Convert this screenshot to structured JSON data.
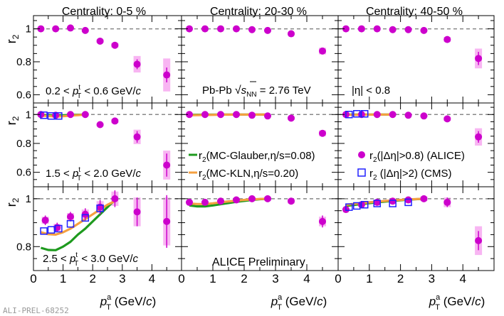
{
  "chart_data": {
    "type": "scatter",
    "title": "",
    "prelim_label": "ALI-PREL-68252",
    "ylabel": "r",
    "ylabel_sub": "2",
    "xlabel": "p",
    "xlabel_sup": "a",
    "xlabel_sub": "T",
    "xlabel_unit_pre": " (GeV/",
    "xlabel_unit_c": "c",
    "xlabel_unit_post": ")",
    "xlim": [
      0,
      5
    ],
    "x_ticks": [
      "0",
      "1",
      "2",
      "3",
      "4"
    ],
    "columns": [
      "Centrality: 0-5 %",
      "Centrality: 20-30 %",
      "Centrality: 40-50 %"
    ],
    "rows": [
      {
        "ylim": [
          0.55,
          1.08
        ],
        "ticks": [
          "0.6",
          "0.8",
          "1"
        ],
        "pt_label": {
          "pre": "0.2 < ",
          "p": "p",
          "sup": "t",
          "sub": "T",
          "post": " < 0.6 GeV/",
          "c": "c"
        },
        "panels": [
          {
            "x": [
              0.25,
              0.75,
              1.25,
              1.75,
              2.25,
              2.75,
              3.5,
              4.5
            ],
            "alice": [
              1.0,
              1.0,
              1.005,
              0.99,
              0.925,
              0.9,
              0.785,
              0.72
            ],
            "alice_err": [
              0.008,
              0.008,
              0.008,
              0.01,
              0.015,
              0.02,
              0.03,
              0.045
            ],
            "alice_sys": [
              0.005,
              0.005,
              0.006,
              0.008,
              0.01,
              0.015,
              0.05,
              0.1
            ]
          },
          {
            "x": [
              0.25,
              0.75,
              1.25,
              1.75,
              2.25,
              2.75,
              3.5,
              4.5
            ],
            "alice": [
              1.0,
              1.0,
              1.0,
              1.0,
              0.995,
              0.99,
              0.97,
              0.865
            ],
            "alice_err": [
              0.004,
              0.004,
              0.004,
              0.005,
              0.006,
              0.008,
              0.012,
              0.02
            ],
            "alice_sys": [
              0.003,
              0.003,
              0.003,
              0.004,
              0.005,
              0.006,
              0.01,
              0.02
            ]
          },
          {
            "x": [
              0.25,
              0.75,
              1.25,
              1.75,
              2.25,
              2.75,
              3.5,
              4.5
            ],
            "alice": [
              1.0,
              1.0,
              1.0,
              0.995,
              0.995,
              0.99,
              0.935,
              0.82
            ],
            "alice_err": [
              0.004,
              0.004,
              0.004,
              0.005,
              0.006,
              0.008,
              0.015,
              0.04
            ],
            "alice_sys": [
              0.003,
              0.003,
              0.003,
              0.004,
              0.005,
              0.006,
              0.015,
              0.06
            ]
          }
        ]
      },
      {
        "ylim": [
          0.5,
          1.08
        ],
        "ticks": [
          "0.6",
          "0.8",
          "1"
        ],
        "pt_label": {
          "pre": "1.5 < ",
          "p": "p",
          "sup": "t",
          "sub": "T",
          "post": " < 2.0 GeV/",
          "c": "c"
        },
        "panels": [
          {
            "x": [
              0.25,
              0.75,
              1.25,
              1.75,
              2.25,
              2.75,
              3.5,
              4.5
            ],
            "alice": [
              1.0,
              0.995,
              1.0,
              1.0,
              0.93,
              0.955,
              0.845,
              0.65
            ],
            "alice_err": [
              0.008,
              0.008,
              0.008,
              0.01,
              0.015,
              0.02,
              0.04,
              0.08
            ],
            "alice_sys": [
              0.005,
              0.005,
              0.006,
              0.008,
              0.01,
              0.015,
              0.05,
              0.1
            ],
            "cms_x": [
              0.35,
              0.6,
              0.85
            ],
            "cms": [
              0.995,
              0.99,
              0.99
            ],
            "glauber": {
              "x": [
                0.3,
                0.8,
                1.3,
                1.8
              ],
              "y": [
                0.997,
                0.993,
                0.997,
                1.0
              ]
            },
            "kln": {
              "x": [
                0.3,
                0.8,
                1.3,
                1.8
              ],
              "y": [
                0.992,
                0.985,
                0.993,
                1.0
              ]
            }
          },
          {
            "x": [
              0.25,
              0.75,
              1.25,
              1.75,
              2.25,
              2.75,
              3.5,
              4.5
            ],
            "alice": [
              1.0,
              1.0,
              1.0,
              1.0,
              0.995,
              0.99,
              0.975,
              0.87
            ],
            "alice_err": [
              0.004,
              0.004,
              0.004,
              0.005,
              0.006,
              0.008,
              0.012,
              0.02
            ],
            "alice_sys": [
              0.003,
              0.003,
              0.003,
              0.004,
              0.005,
              0.006,
              0.01,
              0.02
            ],
            "glauber": {
              "x": [
                0.3,
                0.8,
                1.3,
                1.8,
                2.3,
                2.8
              ],
              "y": [
                0.998,
                0.999,
                1.0,
                1.0,
                1.0,
                1.0
              ]
            },
            "kln": {
              "x": [
                0.3,
                0.8,
                1.3,
                1.8,
                2.3,
                2.8
              ],
              "y": [
                0.995,
                0.997,
                0.999,
                1.0,
                1.0,
                1.0
              ]
            }
          },
          {
            "x": [
              0.25,
              0.75,
              1.25,
              1.75,
              2.25,
              2.75,
              3.5,
              4.5
            ],
            "alice": [
              1.0,
              1.0,
              1.0,
              1.0,
              0.995,
              0.99,
              0.97,
              0.845
            ],
            "alice_err": [
              0.004,
              0.004,
              0.004,
              0.005,
              0.006,
              0.008,
              0.015,
              0.04
            ],
            "alice_sys": [
              0.003,
              0.003,
              0.003,
              0.004,
              0.005,
              0.006,
              0.015,
              0.06
            ],
            "cms_x": [
              0.35,
              0.6,
              0.85
            ],
            "cms": [
              1.0,
              1.005,
              1.005
            ],
            "glauber": {
              "x": [
                0.3,
                0.8,
                1.3,
                1.8
              ],
              "y": [
                1.0,
                1.0,
                1.0,
                1.0
              ]
            },
            "kln": {
              "x": [
                0.3,
                0.8,
                1.3,
                1.8
              ],
              "y": [
                0.998,
                0.999,
                1.0,
                1.0
              ]
            }
          }
        ]
      },
      {
        "ylim": [
          0.7,
          1.05
        ],
        "ticks": [
          "0.8",
          "1"
        ],
        "pt_label": {
          "pre": "2.5 < ",
          "p": "p",
          "sup": "t",
          "sub": "T",
          "post": " < 3.0 GeV/",
          "c": "c"
        },
        "panels": [
          {
            "x": [
              0.4,
              0.8,
              1.25,
              1.75,
              2.25,
              2.75,
              3.5,
              4.5
            ],
            "alice": [
              0.91,
              0.88,
              0.925,
              0.935,
              0.965,
              1.0,
              0.945,
              0.905
            ],
            "alice_err": [
              0.02,
              0.02,
              0.02,
              0.025,
              0.03,
              0.035,
              0.06,
              0.11
            ],
            "alice_sys": [
              0.015,
              0.015,
              0.015,
              0.02,
              0.025,
              0.03,
              0.06,
              0.1
            ],
            "cms_x": [
              0.35,
              0.6,
              0.85,
              1.25,
              1.75,
              2.25
            ],
            "cms": [
              0.865,
              0.87,
              0.875,
              0.895,
              0.92,
              0.96
            ],
            "glauber": {
              "x": [
                0.25,
                0.5,
                0.75,
                1.0,
                1.25,
                1.5,
                1.75,
                2.0,
                2.25,
                2.5,
                2.75
              ],
              "y": [
                0.795,
                0.786,
                0.785,
                0.8,
                0.82,
                0.85,
                0.875,
                0.905,
                0.935,
                0.965,
                0.995
              ]
            },
            "kln": {
              "x": [
                0.25,
                0.5,
                0.75,
                1.0,
                1.25,
                1.5,
                1.75,
                2.0,
                2.25,
                2.5,
                2.75
              ],
              "y": [
                0.86,
                0.852,
                0.85,
                0.86,
                0.875,
                0.895,
                0.915,
                0.935,
                0.955,
                0.975,
                0.99
              ]
            }
          },
          {
            "x": [
              0.25,
              0.75,
              1.25,
              1.75,
              2.25,
              2.75,
              3.5,
              4.5
            ],
            "alice": [
              0.985,
              0.985,
              0.99,
              0.995,
              1.0,
              1.0,
              0.99,
              0.905
            ],
            "alice_err": [
              0.005,
              0.005,
              0.005,
              0.006,
              0.008,
              0.01,
              0.012,
              0.025
            ],
            "alice_sys": [
              0.004,
              0.004,
              0.004,
              0.005,
              0.006,
              0.008,
              0.01,
              0.02
            ],
            "glauber": {
              "x": [
                0.25,
                0.5,
                0.75,
                1.0,
                1.25,
                1.5,
                1.75,
                2.0,
                2.25,
                2.5,
                2.75
              ],
              "y": [
                0.972,
                0.968,
                0.968,
                0.972,
                0.977,
                0.982,
                0.987,
                0.991,
                0.995,
                0.998,
                1.0
              ]
            },
            "kln": {
              "x": [
                0.25,
                0.5,
                0.75,
                1.0,
                1.25,
                1.5,
                1.75,
                2.0,
                2.25,
                2.5,
                2.75
              ],
              "y": [
                0.98,
                0.978,
                0.978,
                0.981,
                0.985,
                0.989,
                0.992,
                0.995,
                0.997,
                0.999,
                1.0
              ]
            }
          },
          {
            "x": [
              0.25,
              0.75,
              1.25,
              1.75,
              2.25,
              2.75,
              3.5,
              4.5
            ],
            "alice": [
              0.955,
              0.975,
              0.985,
              0.99,
              0.995,
              1.0,
              0.985,
              0.825
            ],
            "alice_err": [
              0.008,
              0.008,
              0.008,
              0.008,
              0.01,
              0.012,
              0.02,
              0.04
            ],
            "alice_sys": [
              0.005,
              0.005,
              0.005,
              0.006,
              0.008,
              0.01,
              0.02,
              0.06
            ],
            "cms_x": [
              0.35,
              0.6,
              0.85,
              1.25,
              1.75,
              2.25
            ],
            "cms": [
              0.965,
              0.97,
              0.975,
              0.98,
              0.98,
              0.985
            ],
            "glauber": {
              "x": [
                0.25,
                0.75,
                1.25,
                1.75,
                2.25,
                2.75
              ],
              "y": [
                0.97,
                0.978,
                0.985,
                0.991,
                0.996,
                1.0
              ]
            },
            "kln": {
              "x": [
                0.25,
                0.75,
                1.25,
                1.75,
                2.25,
                2.75
              ],
              "y": [
                0.975,
                0.982,
                0.988,
                0.993,
                0.997,
                1.0
              ]
            }
          }
        ]
      }
    ],
    "annotations": {
      "pbpb_pre": "Pb-Pb  ",
      "sqrt": "√",
      "s": "s",
      "s_sub": "NN",
      "pbpb_post": " = 2.76 TeV",
      "eta": "|η| < 0.8",
      "preliminary": "ALICE Preliminary"
    },
    "legend": {
      "glauber_r": "r",
      "glauber_sub": "2",
      "glauber_text": "(MC-Glauber,η/s=0.08)",
      "kln_r": "r",
      "kln_sub": "2",
      "kln_text": "(MC-KLN,η/s=0.20)",
      "alice_r": "r",
      "alice_sub": "2",
      "alice_text": "(|Δη|>0.8) (ALICE)",
      "cms_r": "r",
      "cms_sub": "2",
      "cms_text": " (|Δη|>2) (CMS)"
    },
    "colors": {
      "alice": "#cc00cc",
      "alice_sys": "#f7a8f0",
      "cms": "#2020ff",
      "glauber": "#1e9a1e",
      "kln": "#f5a040",
      "reference": "#888888"
    }
  }
}
